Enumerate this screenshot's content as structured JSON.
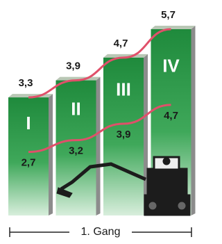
{
  "chart_data": {
    "type": "bar",
    "categories": [
      "I",
      "II",
      "III",
      "IV"
    ],
    "series": [
      {
        "color": "#1f8a3c",
        "values": [
          3.3,
          3.9,
          4.7,
          5.7
        ],
        "value_labels": [
          "3,3",
          "3,9",
          "4,7",
          "5,7"
        ]
      },
      {
        "color": "#e0506a",
        "values": [
          2.7,
          3.2,
          3.9,
          4.7
        ],
        "value_labels": [
          "2,7",
          "3,2",
          "3,9",
          "4,7"
        ]
      }
    ],
    "line_color": "#e0506a",
    "x_label": "1. Gang"
  }
}
